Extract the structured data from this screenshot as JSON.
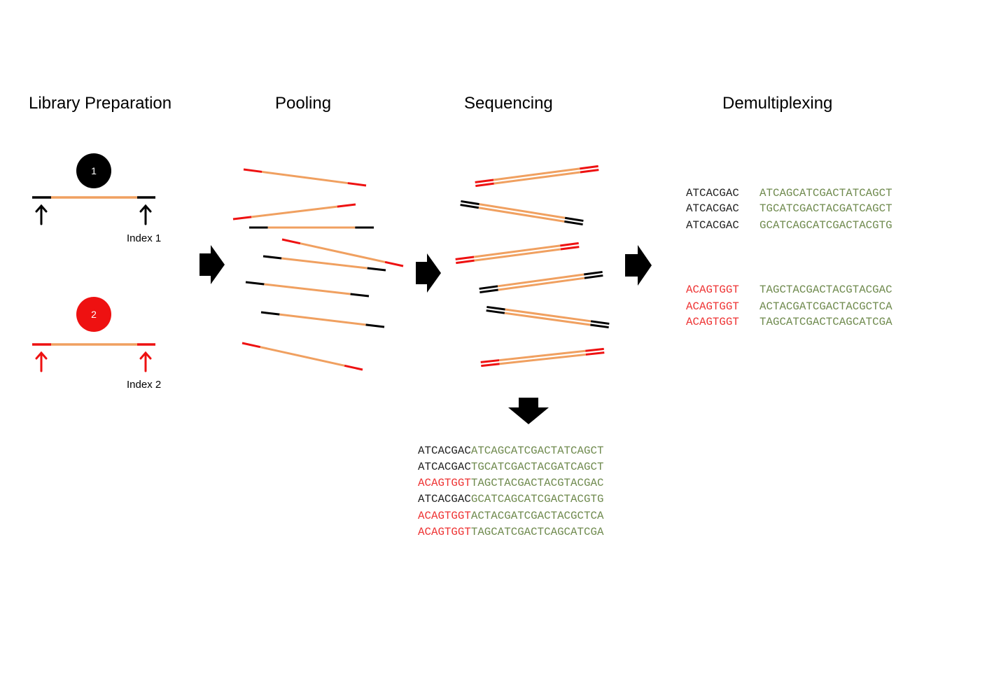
{
  "headings": {
    "library_preparation": "Library Preparation",
    "pooling": "Pooling",
    "sequencing": "Sequencing",
    "demultiplexing": "Demultiplexing"
  },
  "libraries": [
    {
      "badge": "1",
      "index_label": "Index 1",
      "color": "#000000"
    },
    {
      "badge": "2",
      "index_label": "Index 2",
      "color": "#ee1111"
    }
  ],
  "colors": {
    "insert": "#f0a060",
    "index1": "#000000",
    "index2": "#ee1111",
    "read_insert": "#6f8a4e",
    "arrow": "#000000"
  },
  "sequenced_reads": [
    {
      "index": "ATCACGAC",
      "insert": "ATCAGCATCGACTATCAGCT",
      "library": 1
    },
    {
      "index": "ATCACGAC",
      "insert": "TGCATCGACTACGATCAGCT",
      "library": 1
    },
    {
      "index": "ACAGTGGT",
      "insert": "TAGCTACGACTACGTACGAC",
      "library": 2
    },
    {
      "index": "ATCACGAC",
      "insert": "GCATCAGCATCGACTACGTG",
      "library": 1
    },
    {
      "index": "ACAGTGGT",
      "insert": "ACTACGATCGACTACGCTCA",
      "library": 2
    },
    {
      "index": "ACAGTGGT",
      "insert": "TAGCATCGACTCAGCATCGA",
      "library": 2
    }
  ],
  "demultiplexed": [
    {
      "library": 1,
      "reads": [
        {
          "index": "ATCACGAC",
          "insert": "ATCAGCATCGACTATCAGCT"
        },
        {
          "index": "ATCACGAC",
          "insert": "TGCATCGACTACGATCAGCT"
        },
        {
          "index": "ATCACGAC",
          "insert": "GCATCAGCATCGACTACGTG"
        }
      ]
    },
    {
      "library": 2,
      "reads": [
        {
          "index": "ACAGTGGT",
          "insert": "TAGCTACGACTACGTACGAC"
        },
        {
          "index": "ACAGTGGT",
          "insert": "ACTACGATCGACTACGCTCA"
        },
        {
          "index": "ACAGTGGT",
          "insert": "TAGCATCGACTCAGCATCGA"
        }
      ]
    }
  ]
}
